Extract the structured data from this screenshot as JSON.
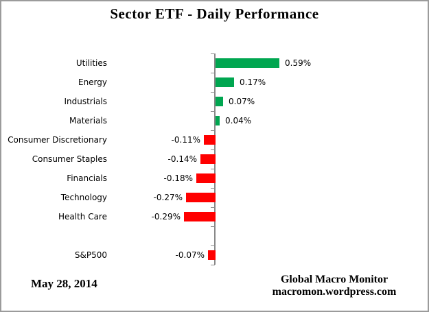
{
  "title": "Sector ETF - Daily Performance",
  "chart_data": {
    "type": "bar",
    "orientation": "horizontal",
    "title": "Sector ETF - Daily Performance",
    "categories": [
      "Utilities",
      "Energy",
      "Industrials",
      "Materials",
      "Consumer Discretionary",
      "Consumer Staples",
      "Financials",
      "Technology",
      "Health Care",
      "",
      "S&P500"
    ],
    "values": [
      0.59,
      0.17,
      0.07,
      0.04,
      -0.11,
      -0.14,
      -0.18,
      -0.27,
      -0.29,
      null,
      -0.07
    ],
    "labels": [
      "0.59%",
      "0.17%",
      "0.07%",
      "0.04%",
      "-0.11%",
      "-0.14%",
      "-0.18%",
      "-0.27%",
      "-0.29%",
      "",
      "-0.07%"
    ],
    "unit": "%",
    "xlim": [
      -0.4,
      0.8
    ],
    "grid": false,
    "value_axis_visible": false,
    "data_labels": "outside-end",
    "positive_color": "#00a650",
    "negative_color": "#ff0000",
    "axis_color": "#898989"
  },
  "footer": {
    "date": "May 28, 2014",
    "source_line1": "Global Macro Monitor",
    "source_line2": "macromon.wordpress.com"
  }
}
